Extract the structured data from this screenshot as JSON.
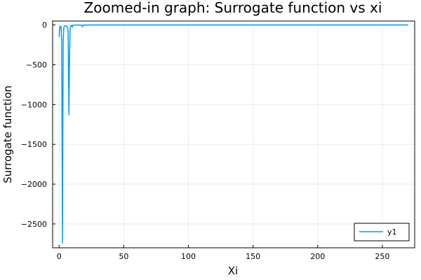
{
  "chart_data": {
    "type": "line",
    "title": "Zoomed-in graph: Surrogate function vs xi",
    "xlabel": "Xi",
    "ylabel": "Surrogate function",
    "xlim": [
      -5,
      275
    ],
    "ylim": [
      -2800,
      50
    ],
    "xticks": [
      0,
      50,
      100,
      150,
      200,
      250
    ],
    "yticks": [
      0,
      -500,
      -1000,
      -1500,
      -2000,
      -2500
    ],
    "grid": true,
    "legend_position": "bottom-right",
    "series": [
      {
        "name": "y1",
        "color": "#009AFA",
        "x": [
          0,
          0.5,
          1,
          1.5,
          2,
          2.3,
          2.6,
          2.9,
          3.2,
          3.6,
          4,
          5,
          6,
          7,
          7.3,
          7.6,
          8,
          8.5,
          9,
          10,
          10.2,
          10.4,
          11,
          12,
          14,
          16,
          18,
          18.2,
          18.4,
          19,
          21,
          25,
          30,
          40,
          60,
          80,
          100,
          150,
          200,
          250,
          270
        ],
        "y": [
          -150,
          -30,
          -15,
          -20,
          -200,
          -1400,
          -2740,
          -1200,
          -200,
          -40,
          -15,
          -10,
          -15,
          -60,
          -600,
          -1130,
          -500,
          -50,
          -10,
          -5,
          -30,
          -5,
          -3,
          -2,
          -1,
          -1,
          -5,
          -25,
          -5,
          -1,
          -1,
          0,
          0,
          0,
          0,
          0,
          0,
          0,
          0,
          0,
          0
        ]
      }
    ]
  }
}
